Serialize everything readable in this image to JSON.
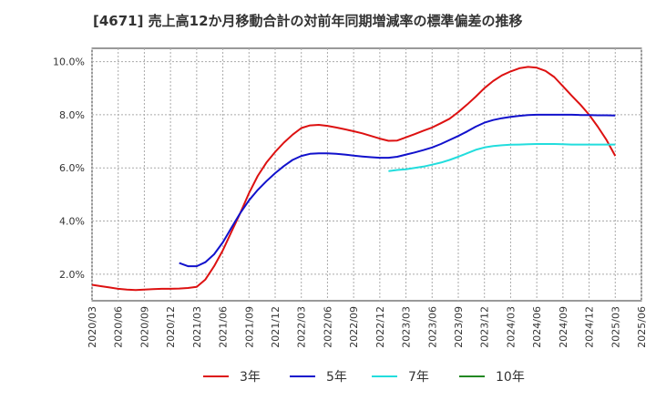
{
  "chart_data": {
    "type": "line",
    "title": "[4671]  売上高12か月移動合計の対前年同期増減率の標準偏差の推移",
    "x_ticks": [
      "2020/03",
      "2020/06",
      "2020/09",
      "2020/12",
      "2021/03",
      "2021/06",
      "2021/09",
      "2021/12",
      "2022/03",
      "2022/06",
      "2022/09",
      "2022/12",
      "2023/03",
      "2023/06",
      "2023/09",
      "2023/12",
      "2024/03",
      "2024/06",
      "2024/09",
      "2024/12",
      "2025/03",
      "2025/06"
    ],
    "y_ticks": [
      "2.0%",
      "4.0%",
      "6.0%",
      "8.0%",
      "10.0%"
    ],
    "y_tick_values": [
      2.0,
      4.0,
      6.0,
      8.0,
      10.0
    ],
    "ylim": [
      1.0,
      10.5
    ],
    "x_range": [
      "2020/03",
      "2025/06"
    ],
    "grid": true,
    "legend_position": "bottom",
    "series": [
      {
        "name": "3年",
        "color": "#dd1111",
        "x": [
          "2020/03",
          "2020/04",
          "2020/05",
          "2020/06",
          "2020/07",
          "2020/08",
          "2020/09",
          "2020/10",
          "2020/11",
          "2020/12",
          "2021/01",
          "2021/02",
          "2021/03",
          "2021/04",
          "2021/05",
          "2021/06",
          "2021/07",
          "2021/08",
          "2021/09",
          "2021/10",
          "2021/11",
          "2021/12",
          "2022/01",
          "2022/02",
          "2022/03",
          "2022/04",
          "2022/05",
          "2022/06",
          "2022/07",
          "2022/08",
          "2022/09",
          "2022/10",
          "2022/11",
          "2022/12",
          "2023/01",
          "2023/02",
          "2023/03",
          "2023/04",
          "2023/05",
          "2023/06",
          "2023/07",
          "2023/08",
          "2023/09",
          "2023/10",
          "2023/11",
          "2023/12",
          "2024/01",
          "2024/02",
          "2024/03",
          "2024/04",
          "2024/05",
          "2024/06",
          "2024/07",
          "2024/08",
          "2024/09",
          "2024/10",
          "2024/11",
          "2024/12",
          "2025/01",
          "2025/02",
          "2025/03"
        ],
        "values": [
          1.6,
          1.55,
          1.5,
          1.45,
          1.42,
          1.4,
          1.42,
          1.44,
          1.45,
          1.45,
          1.46,
          1.48,
          1.52,
          1.8,
          2.3,
          2.9,
          3.6,
          4.3,
          5.05,
          5.7,
          6.2,
          6.6,
          6.95,
          7.25,
          7.5,
          7.6,
          7.62,
          7.58,
          7.52,
          7.45,
          7.38,
          7.3,
          7.2,
          7.1,
          7.02,
          7.03,
          7.15,
          7.27,
          7.4,
          7.52,
          7.68,
          7.85,
          8.1,
          8.38,
          8.68,
          9.0,
          9.27,
          9.48,
          9.63,
          9.75,
          9.8,
          9.77,
          9.65,
          9.42,
          9.07,
          8.72,
          8.38,
          8.0,
          7.55,
          7.05,
          6.45
        ]
      },
      {
        "name": "5年",
        "color": "#1111cc",
        "x": [
          "2021/01",
          "2021/02",
          "2021/03",
          "2021/04",
          "2021/05",
          "2021/06",
          "2021/07",
          "2021/08",
          "2021/09",
          "2021/10",
          "2021/11",
          "2021/12",
          "2022/01",
          "2022/02",
          "2022/03",
          "2022/04",
          "2022/05",
          "2022/06",
          "2022/07",
          "2022/08",
          "2022/09",
          "2022/10",
          "2022/11",
          "2022/12",
          "2023/01",
          "2023/02",
          "2023/03",
          "2023/04",
          "2023/05",
          "2023/06",
          "2023/07",
          "2023/08",
          "2023/09",
          "2023/10",
          "2023/11",
          "2023/12",
          "2024/01",
          "2024/02",
          "2024/03",
          "2024/04",
          "2024/05",
          "2024/06",
          "2024/07",
          "2024/08",
          "2024/09",
          "2024/10",
          "2024/11",
          "2024/12",
          "2025/01",
          "2025/02",
          "2025/03"
        ],
        "values": [
          2.42,
          2.3,
          2.3,
          2.45,
          2.75,
          3.2,
          3.75,
          4.3,
          4.78,
          5.17,
          5.5,
          5.8,
          6.07,
          6.3,
          6.45,
          6.53,
          6.55,
          6.55,
          6.53,
          6.5,
          6.46,
          6.43,
          6.4,
          6.38,
          6.38,
          6.42,
          6.5,
          6.58,
          6.67,
          6.77,
          6.9,
          7.05,
          7.2,
          7.37,
          7.55,
          7.7,
          7.8,
          7.87,
          7.92,
          7.96,
          7.99,
          8.0,
          8.0,
          8.0,
          8.0,
          8.0,
          7.99,
          7.99,
          7.98,
          7.98,
          7.97
        ]
      },
      {
        "name": "7年",
        "color": "#22dddd",
        "x": [
          "2023/01",
          "2023/02",
          "2023/03",
          "2023/04",
          "2023/05",
          "2023/06",
          "2023/07",
          "2023/08",
          "2023/09",
          "2023/10",
          "2023/11",
          "2023/12",
          "2024/01",
          "2024/02",
          "2024/03",
          "2024/04",
          "2024/05",
          "2024/06",
          "2024/07",
          "2024/08",
          "2024/09",
          "2024/10",
          "2024/11",
          "2024/12",
          "2025/01",
          "2025/02",
          "2025/03"
        ],
        "values": [
          5.88,
          5.92,
          5.95,
          6.0,
          6.05,
          6.12,
          6.2,
          6.3,
          6.42,
          6.55,
          6.68,
          6.77,
          6.82,
          6.85,
          6.87,
          6.88,
          6.89,
          6.9,
          6.9,
          6.9,
          6.89,
          6.88,
          6.88,
          6.88,
          6.88,
          6.88,
          6.88
        ]
      },
      {
        "name": "10年",
        "color": "#228822",
        "x": [],
        "values": []
      }
    ]
  }
}
